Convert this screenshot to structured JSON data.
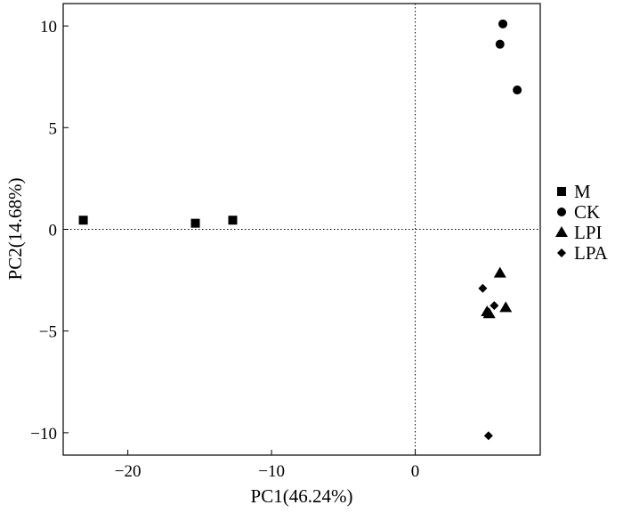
{
  "chart_data": {
    "type": "scatter",
    "xlabel": "PC1(46.24%)",
    "ylabel": "PC2(14.68%)",
    "xlim": [
      -24.5,
      8.7
    ],
    "ylim": [
      -11.1,
      11.1
    ],
    "xticks": [
      -20,
      -10,
      0
    ],
    "yticks": [
      10,
      5,
      0,
      -5,
      -10
    ],
    "tick_labels": {
      "x": [
        "−20",
        "−10",
        "0"
      ],
      "y": [
        "10",
        "5",
        "0",
        "−5",
        "−10"
      ]
    },
    "reference_lines": {
      "x": 0,
      "y": 0,
      "style": "dotted"
    },
    "grid": false,
    "legend_position": "right",
    "series": [
      {
        "name": "M",
        "marker": "square",
        "color": "#000000",
        "points": [
          [
            -23.1,
            0.45
          ],
          [
            -15.3,
            0.3
          ],
          [
            -12.7,
            0.45
          ]
        ]
      },
      {
        "name": "CK",
        "marker": "circle",
        "color": "#000000",
        "points": [
          [
            6.1,
            10.1
          ],
          [
            5.9,
            9.1
          ],
          [
            7.1,
            6.85
          ]
        ]
      },
      {
        "name": "LPI",
        "marker": "triangle",
        "color": "#000000",
        "points": [
          [
            5.9,
            -2.15
          ],
          [
            6.3,
            -3.85
          ],
          [
            5.0,
            -4.05
          ],
          [
            5.15,
            -4.15
          ]
        ]
      },
      {
        "name": "LPA",
        "marker": "diamond",
        "color": "#000000",
        "points": [
          [
            4.7,
            -2.9
          ],
          [
            5.5,
            -3.75
          ],
          [
            5.1,
            -10.15
          ]
        ]
      }
    ]
  }
}
